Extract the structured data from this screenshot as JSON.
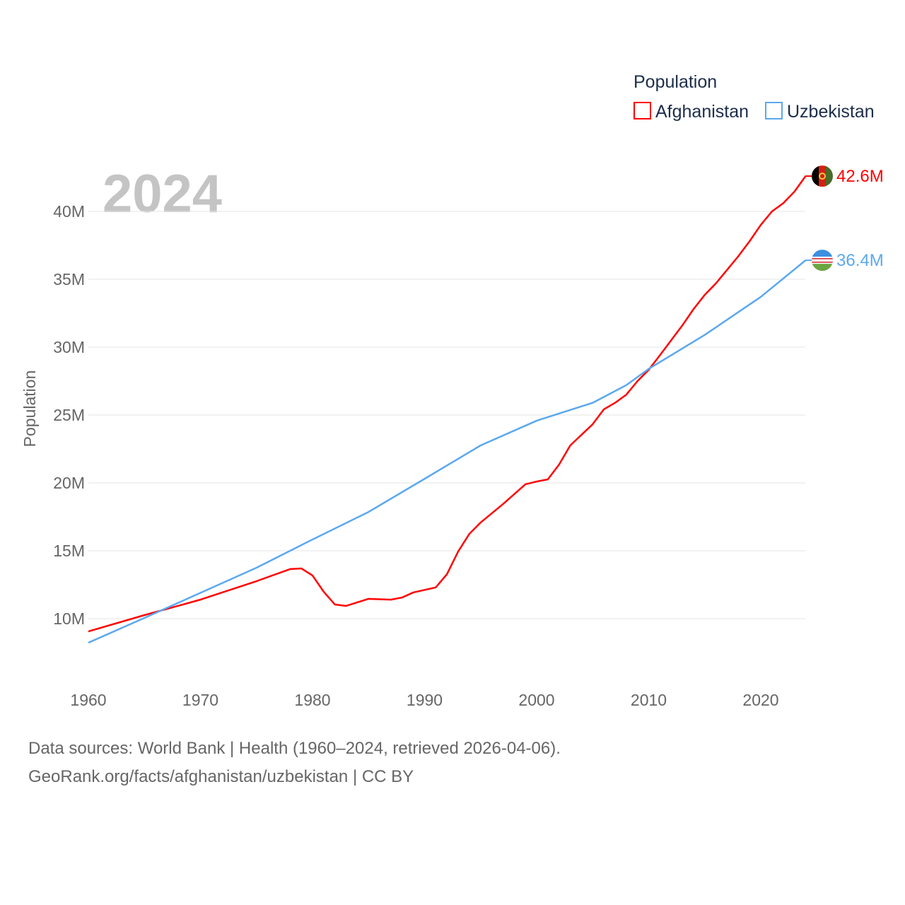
{
  "chart_data": {
    "type": "line",
    "year_label": "2024",
    "ylabel": "Population",
    "legend_title": "Population",
    "legend_placement": "top-right",
    "xlim": [
      1960,
      2024
    ],
    "ylim": [
      6000000,
      44000000
    ],
    "xticks": [
      "1960",
      "1970",
      "1980",
      "1990",
      "2000",
      "2010",
      "2020"
    ],
    "yticks": [
      "10M",
      "15M",
      "20M",
      "25M",
      "30M",
      "35M",
      "40M"
    ],
    "series": [
      {
        "name": "Afghanistan",
        "color": "#ff0000",
        "end_label": "42.6M",
        "x": [
          1960,
          1965,
          1970,
          1975,
          1978,
          1979,
          1980,
          1981,
          1982,
          1983,
          1985,
          1987,
          1988,
          1989,
          1991,
          1992,
          1993,
          1994,
          1995,
          1997,
          1999,
          2000,
          2001,
          2002,
          2003,
          2005,
          2006,
          2007,
          2008,
          2009,
          2010,
          2011,
          2012,
          2013,
          2014,
          2015,
          2016,
          2017,
          2018,
          2019,
          2020,
          2021,
          2022,
          2023,
          2024
        ],
        "y": [
          9.06,
          10.26,
          11.4,
          12.76,
          13.65,
          13.7,
          13.18,
          11.98,
          11.04,
          10.94,
          11.46,
          11.4,
          11.56,
          11.93,
          12.3,
          13.28,
          14.95,
          16.25,
          17.08,
          18.44,
          19.9,
          20.1,
          20.26,
          21.35,
          22.76,
          24.32,
          25.42,
          25.9,
          26.5,
          27.5,
          28.33,
          29.4,
          30.5,
          31.6,
          32.8,
          33.85,
          34.7,
          35.7,
          36.7,
          37.8,
          39.0,
          40.0,
          40.6,
          41.45,
          42.6
        ]
      },
      {
        "name": "Uzbekistan",
        "color": "#5ba8ef",
        "end_label": "36.4M",
        "x": [
          1960,
          1965,
          1970,
          1975,
          1980,
          1985,
          1990,
          1995,
          2000,
          2005,
          2008,
          2010,
          2015,
          2020,
          2024
        ],
        "y": [
          8.23,
          10.05,
          11.9,
          13.75,
          15.83,
          17.86,
          20.3,
          22.76,
          24.58,
          25.9,
          27.2,
          28.4,
          30.9,
          33.7,
          36.4
        ]
      }
    ]
  },
  "footer": {
    "line1": "Data sources: World Bank | Health (1960–2024, retrieved 2026-04-06).",
    "line2": "GeoRank.org/facts/afghanistan/uzbekistan | CC BY"
  }
}
